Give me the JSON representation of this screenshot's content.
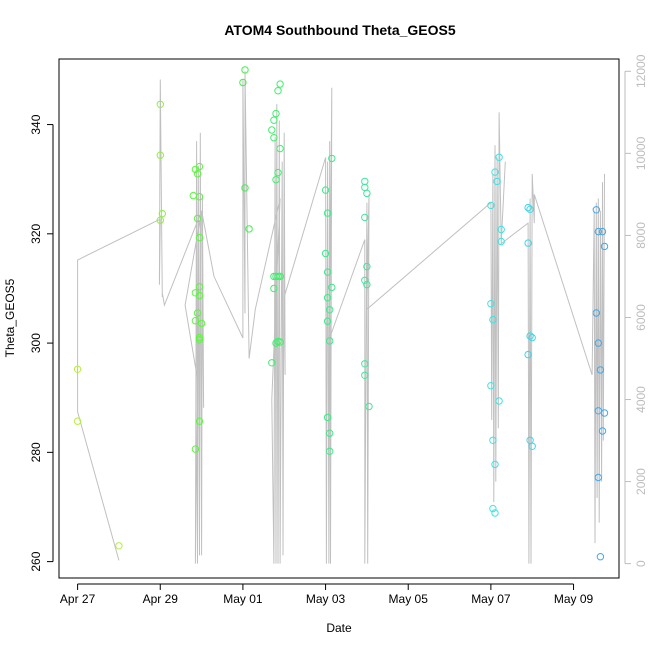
{
  "chart_data": {
    "type": "scatter",
    "title": "ATOM4 Southbound Theta_GEOS5",
    "xlabel": "Date",
    "ylabel": "Theta_GEOS5",
    "x_tick_labels": [
      "Apr 27",
      "Apr 29",
      "May 01",
      "May 03",
      "May 05",
      "May 07",
      "May 09"
    ],
    "x_ticks": [
      0,
      2,
      4,
      6,
      8,
      10,
      12
    ],
    "xlim": [
      -0.45,
      13.1
    ],
    "ylim": [
      257,
      352
    ],
    "y_ticks": [
      260,
      280,
      300,
      320,
      340
    ],
    "y_tick_labels": [
      "260",
      "280",
      "300",
      "320",
      "340"
    ],
    "y2lim": [
      -350,
      12300
    ],
    "y2_ticks": [
      0,
      2000,
      4000,
      6000,
      8000,
      10000,
      12000
    ],
    "y2_tick_labels": [
      "0",
      "2000",
      "4000",
      "6000",
      "8000",
      "10000",
      "12000"
    ],
    "colors": {
      "line": "#c0c0c0",
      "axis": "#000000",
      "right_axis": "#bdbdbd"
    },
    "points": [
      [
        0.0,
        295.2,
        "#b6ee3f"
      ],
      [
        0.0,
        285.7,
        "#b6ee3f"
      ],
      [
        1.0,
        262.9,
        "#b6ee3f"
      ],
      [
        2.0,
        343.7,
        "#8ef03f"
      ],
      [
        2.0,
        334.4,
        "#8ef03f"
      ],
      [
        2.05,
        323.7,
        "#8ef03f"
      ],
      [
        2.0,
        322.5,
        "#8ef03f"
      ],
      [
        2.8,
        327.0,
        "#5cf53f"
      ],
      [
        2.85,
        331.8,
        "#5cf53f"
      ],
      [
        2.95,
        332.3,
        "#5cf53f"
      ],
      [
        2.9,
        331.0,
        "#5cf53f"
      ],
      [
        2.95,
        326.8,
        "#5cf53f"
      ],
      [
        2.9,
        322.8,
        "#5cf53f"
      ],
      [
        2.95,
        319.3,
        "#5cf53f"
      ],
      [
        2.95,
        310.3,
        "#5cf53f"
      ],
      [
        2.85,
        309.2,
        "#5cf53f"
      ],
      [
        2.95,
        308.7,
        "#5cf53f"
      ],
      [
        2.9,
        305.5,
        "#5cf53f"
      ],
      [
        2.85,
        304.1,
        "#5cf53f"
      ],
      [
        3.0,
        303.6,
        "#5cf53f"
      ],
      [
        2.95,
        301.0,
        "#5cf53f"
      ],
      [
        2.95,
        300.6,
        "#5cf53f"
      ],
      [
        2.95,
        285.7,
        "#5cf53f"
      ],
      [
        2.85,
        280.6,
        "#5cf53f"
      ],
      [
        4.05,
        350.0,
        "#45f04f"
      ],
      [
        4.0,
        347.7,
        "#45f04f"
      ],
      [
        4.05,
        328.4,
        "#45f04f"
      ],
      [
        4.15,
        320.9,
        "#45f04f"
      ],
      [
        4.9,
        347.4,
        "#3ef06a"
      ],
      [
        4.85,
        346.2,
        "#3ef06a"
      ],
      [
        4.8,
        342.0,
        "#3ef06a"
      ],
      [
        4.75,
        340.8,
        "#3ef06a"
      ],
      [
        4.7,
        339.0,
        "#3ef06a"
      ],
      [
        4.75,
        337.6,
        "#3ef06a"
      ],
      [
        4.9,
        335.6,
        "#3ef06a"
      ],
      [
        4.85,
        331.2,
        "#3ef06a"
      ],
      [
        4.8,
        329.9,
        "#3ef06a"
      ],
      [
        4.75,
        312.2,
        "#3ef06a"
      ],
      [
        4.8,
        312.2,
        "#3ef06a"
      ],
      [
        4.85,
        312.2,
        "#3ef06a"
      ],
      [
        4.9,
        312.2,
        "#3ef06a"
      ],
      [
        4.75,
        310.0,
        "#3ef06a"
      ],
      [
        4.85,
        300.3,
        "#3ef06a"
      ],
      [
        4.9,
        300.2,
        "#3ef06a"
      ],
      [
        4.8,
        300.0,
        "#3ef06a"
      ],
      [
        4.7,
        296.4,
        "#3ef06a"
      ],
      [
        6.15,
        333.8,
        "#3fe88a"
      ],
      [
        6.0,
        328.0,
        "#3fe88a"
      ],
      [
        6.05,
        323.8,
        "#3fe88a"
      ],
      [
        6.0,
        316.4,
        "#3fe88a"
      ],
      [
        6.05,
        313.0,
        "#3fe88a"
      ],
      [
        6.15,
        310.2,
        "#3fe88a"
      ],
      [
        6.05,
        308.3,
        "#3fe88a"
      ],
      [
        6.1,
        306.1,
        "#3fe88a"
      ],
      [
        6.05,
        304.0,
        "#3fe88a"
      ],
      [
        6.1,
        300.4,
        "#3fe88a"
      ],
      [
        6.05,
        286.4,
        "#3fe88a"
      ],
      [
        6.1,
        283.5,
        "#3fe88a"
      ],
      [
        6.1,
        280.2,
        "#3fe88a"
      ],
      [
        6.95,
        329.6,
        "#3ee89c"
      ],
      [
        6.95,
        328.5,
        "#3ee89c"
      ],
      [
        7.0,
        327.4,
        "#3ee89c"
      ],
      [
        6.95,
        323.0,
        "#3ee89c"
      ],
      [
        7.0,
        314.0,
        "#3ee89c"
      ],
      [
        6.95,
        311.5,
        "#3ee89c"
      ],
      [
        7.0,
        310.7,
        "#3ee89c"
      ],
      [
        6.95,
        296.2,
        "#3ee89c"
      ],
      [
        6.95,
        294.1,
        "#3ee89c"
      ],
      [
        7.05,
        288.4,
        "#3ee89c"
      ],
      [
        10.2,
        334.0,
        "#3fe3e3"
      ],
      [
        10.1,
        331.3,
        "#3fe3e3"
      ],
      [
        10.15,
        329.6,
        "#3fe3e3"
      ],
      [
        10.0,
        325.2,
        "#3fe3e3"
      ],
      [
        10.25,
        320.8,
        "#3fe3e3"
      ],
      [
        10.25,
        318.6,
        "#3fe3e3"
      ],
      [
        10.0,
        307.2,
        "#3fe3e3"
      ],
      [
        10.05,
        304.3,
        "#3fe3e3"
      ],
      [
        10.0,
        292.2,
        "#3fe3e3"
      ],
      [
        10.2,
        289.4,
        "#3fe3e3"
      ],
      [
        10.05,
        282.2,
        "#3fe3e3"
      ],
      [
        10.1,
        277.8,
        "#3fe3e3"
      ],
      [
        10.05,
        269.7,
        "#3fe3e3"
      ],
      [
        10.1,
        268.9,
        "#3fe3e3"
      ],
      [
        10.9,
        324.8,
        "#3fd6ea"
      ],
      [
        10.95,
        324.5,
        "#3fd6ea"
      ],
      [
        10.9,
        318.3,
        "#3fd6ea"
      ],
      [
        10.95,
        301.3,
        "#3fd6ea"
      ],
      [
        11.0,
        301.0,
        "#3fd6ea"
      ],
      [
        10.9,
        297.9,
        "#3fd6ea"
      ],
      [
        10.95,
        282.2,
        "#3fd6ea"
      ],
      [
        11.0,
        281.1,
        "#3fd6ea"
      ],
      [
        12.55,
        324.4,
        "#3fa9ee"
      ],
      [
        12.6,
        320.4,
        "#3fa9ee"
      ],
      [
        12.7,
        320.4,
        "#3fa9ee"
      ],
      [
        12.75,
        317.7,
        "#3fa9ee"
      ],
      [
        12.55,
        305.5,
        "#3fa9ee"
      ],
      [
        12.6,
        300.0,
        "#3fa9ee"
      ],
      [
        12.65,
        295.1,
        "#3fa9ee"
      ],
      [
        12.6,
        287.6,
        "#3fa9ee"
      ],
      [
        12.75,
        287.2,
        "#3fa9ee"
      ],
      [
        12.7,
        283.9,
        "#3fa9ee"
      ],
      [
        12.6,
        275.4,
        "#3fa9ee"
      ],
      [
        12.65,
        260.9,
        "#3fa9ee"
      ]
    ],
    "altitude_line": [
      [
        0.0,
        7400
      ],
      [
        0.0,
        3700
      ],
      [
        1.0,
        80
      ],
      [
        0.0,
        3700
      ],
      [
        0.0,
        7400
      ],
      [
        2.0,
        8400
      ],
      [
        1.98,
        6800
      ],
      [
        2.0,
        11800
      ],
      [
        2.05,
        6500
      ],
      [
        2.05,
        6600
      ],
      [
        2.1,
        6300
      ],
      [
        3.0,
        8600
      ],
      [
        2.6,
        6300
      ],
      [
        2.9,
        4500
      ],
      [
        2.85,
        0
      ],
      [
        2.88,
        10300
      ],
      [
        2.9,
        0
      ],
      [
        2.92,
        9700
      ],
      [
        2.95,
        200
      ],
      [
        2.97,
        10500
      ],
      [
        3.0,
        200
      ],
      [
        3.02,
        9000
      ],
      [
        3.05,
        3800
      ],
      [
        3.0,
        8600
      ],
      [
        3.3,
        7000
      ],
      [
        4.0,
        5500
      ],
      [
        4.0,
        11800
      ],
      [
        4.05,
        6100
      ],
      [
        4.05,
        12000
      ],
      [
        4.15,
        5000
      ],
      [
        4.3,
        6200
      ],
      [
        4.9,
        8900
      ],
      [
        4.7,
        4000
      ],
      [
        4.75,
        0
      ],
      [
        4.78,
        10400
      ],
      [
        4.8,
        0
      ],
      [
        4.82,
        11200
      ],
      [
        4.85,
        0
      ],
      [
        4.88,
        10800
      ],
      [
        4.9,
        0
      ],
      [
        4.95,
        9800
      ],
      [
        4.97,
        200
      ],
      [
        5.0,
        10500
      ],
      [
        5.02,
        4600
      ],
      [
        5.0,
        6500
      ],
      [
        6.0,
        9900
      ],
      [
        6.02,
        0
      ],
      [
        6.05,
        9800
      ],
      [
        6.08,
        0
      ],
      [
        6.1,
        10300
      ],
      [
        6.12,
        0
      ],
      [
        6.15,
        11600
      ],
      [
        6.1,
        5500
      ],
      [
        6.1,
        5500
      ],
      [
        6.95,
        7900
      ],
      [
        6.95,
        0
      ],
      [
        7.0,
        8800
      ],
      [
        7.02,
        0
      ],
      [
        7.05,
        9000
      ],
      [
        7.0,
        6200
      ],
      [
        10.0,
        8800
      ],
      [
        10.02,
        3500
      ],
      [
        10.05,
        9500
      ],
      [
        10.07,
        1500
      ],
      [
        10.1,
        10200
      ],
      [
        10.12,
        2000
      ],
      [
        10.15,
        9900
      ],
      [
        10.18,
        3300
      ],
      [
        10.2,
        11000
      ],
      [
        10.25,
        7800
      ],
      [
        10.35,
        9800
      ],
      [
        10.25,
        7800
      ],
      [
        10.9,
        8300
      ],
      [
        10.92,
        0
      ],
      [
        10.95,
        8900
      ],
      [
        10.97,
        0
      ],
      [
        11.0,
        9500
      ],
      [
        11.05,
        8300
      ],
      [
        11.05,
        9000
      ],
      [
        12.45,
        4600
      ],
      [
        12.5,
        8600
      ],
      [
        12.52,
        500
      ],
      [
        12.55,
        8800
      ],
      [
        12.57,
        1600
      ],
      [
        12.6,
        8900
      ],
      [
        12.62,
        1000
      ],
      [
        12.65,
        8600
      ],
      [
        12.68,
        2000
      ],
      [
        12.7,
        9300
      ],
      [
        12.72,
        3000
      ],
      [
        12.75,
        9500
      ]
    ]
  }
}
